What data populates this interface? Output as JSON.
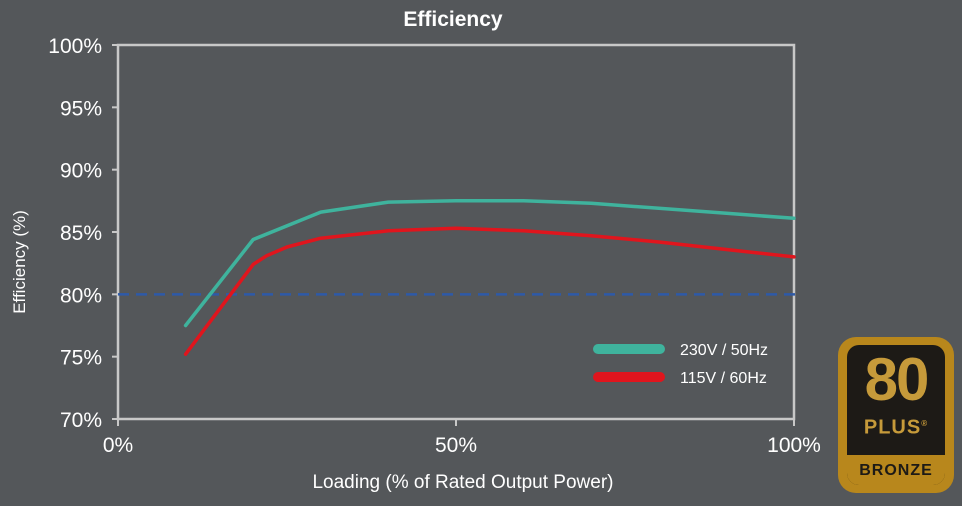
{
  "chart_data": {
    "type": "line",
    "title": "Efficiency",
    "xlabel": "Loading (% of Rated Output Power)",
    "ylabel": "Efficiency (%)",
    "xlim": [
      0,
      100
    ],
    "ylim": [
      70,
      100
    ],
    "x_ticks": [
      {
        "value": 0,
        "label": "0%"
      },
      {
        "value": 50,
        "label": "50%"
      },
      {
        "value": 100,
        "label": "100%"
      }
    ],
    "y_ticks": [
      {
        "value": 100,
        "label": "100%"
      },
      {
        "value": 95,
        "label": "95%"
      },
      {
        "value": 90,
        "label": "90%"
      },
      {
        "value": 85,
        "label": "85%"
      },
      {
        "value": 80,
        "label": "80%"
      },
      {
        "value": 75,
        "label": "75%"
      },
      {
        "value": 70,
        "label": "70%"
      }
    ],
    "series": [
      {
        "name": "230V / 50Hz",
        "color": "#3fb39d",
        "x": [
          10,
          20,
          30,
          40,
          50,
          60,
          70,
          80,
          90,
          100
        ],
        "values": [
          77.5,
          84.4,
          86.6,
          87.4,
          87.5,
          87.5,
          87.3,
          86.9,
          86.5,
          86.1
        ]
      },
      {
        "name": "115V / 60Hz",
        "color": "#e0151d",
        "x": [
          10,
          20,
          22,
          25,
          30,
          40,
          50,
          60,
          70,
          80,
          90,
          100
        ],
        "values": [
          75.2,
          82.4,
          83.1,
          83.8,
          84.5,
          85.1,
          85.3,
          85.1,
          84.7,
          84.2,
          83.6,
          83.0
        ]
      }
    ],
    "reference_line": {
      "y": 80,
      "color": "#2e5aa8",
      "style": "dashed"
    },
    "grid": false,
    "legend_position": "bottom-right"
  },
  "badge": {
    "number": "80",
    "plus": "PLUS",
    "registered": "®",
    "tier": "BRONZE"
  }
}
